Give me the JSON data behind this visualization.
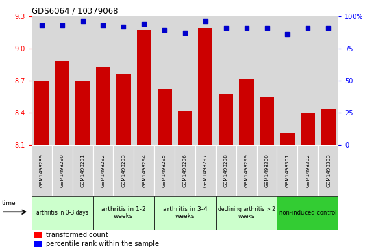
{
  "title": "GDS6064 / 10379068",
  "categories": [
    "GSM1498289",
    "GSM1498290",
    "GSM1498291",
    "GSM1498292",
    "GSM1498293",
    "GSM1498294",
    "GSM1498295",
    "GSM1498296",
    "GSM1498297",
    "GSM1498298",
    "GSM1498299",
    "GSM1498300",
    "GSM1498301",
    "GSM1498302",
    "GSM1498303"
  ],
  "bar_values": [
    8.7,
    8.88,
    8.7,
    8.83,
    8.76,
    9.17,
    8.62,
    8.42,
    9.19,
    8.57,
    8.71,
    8.55,
    8.21,
    8.4,
    8.43
  ],
  "percentile_values": [
    93,
    93,
    96,
    93,
    92,
    94,
    89,
    87,
    96,
    91,
    91,
    91,
    86,
    91,
    91
  ],
  "bar_color": "#cc0000",
  "dot_color": "#0000cc",
  "ylim_left": [
    8.1,
    9.3
  ],
  "ylim_right": [
    0,
    100
  ],
  "yticks_left": [
    8.1,
    8.4,
    8.7,
    9.0,
    9.3
  ],
  "yticks_right": [
    0,
    25,
    50,
    75,
    100
  ],
  "ytick_labels_right": [
    "0",
    "25",
    "50",
    "75",
    "100%"
  ],
  "grid_values": [
    8.4,
    8.7,
    9.0
  ],
  "groups": [
    {
      "label": "arthritis in 0-3 days",
      "start": 0,
      "end": 3,
      "color": "#ccffcc",
      "fontsize": 5.5
    },
    {
      "label": "arthritis in 1-2\nweeks",
      "start": 3,
      "end": 6,
      "color": "#ccffcc",
      "fontsize": 6.5
    },
    {
      "label": "arthritis in 3-4\nweeks",
      "start": 6,
      "end": 9,
      "color": "#ccffcc",
      "fontsize": 6.5
    },
    {
      "label": "declining arthritis > 2\nweeks",
      "start": 9,
      "end": 12,
      "color": "#ccffcc",
      "fontsize": 5.5
    },
    {
      "label": "non-induced control",
      "start": 12,
      "end": 15,
      "color": "#33cc33",
      "fontsize": 6.0
    }
  ],
  "xlabel_time": "time",
  "legend_bar_label": "transformed count",
  "legend_dot_label": "percentile rank within the sample",
  "col_bg_color": "#d8d8d8",
  "plot_bg_color": "#ffffff"
}
